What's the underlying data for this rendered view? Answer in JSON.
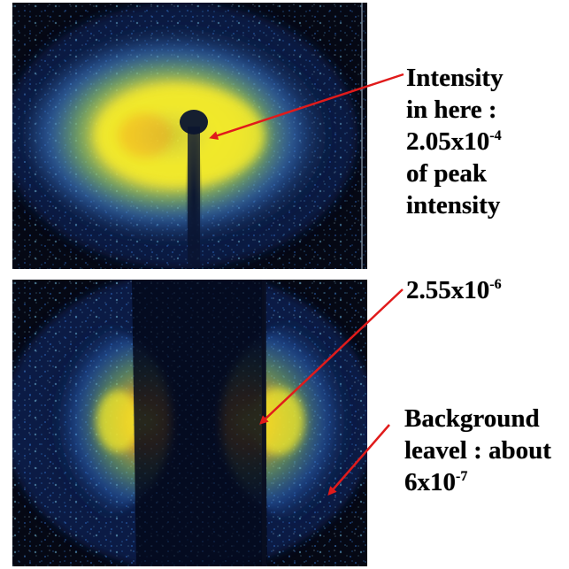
{
  "annotations": {
    "top": {
      "line1": "Intensity",
      "line2": "in here :",
      "line3_mantissa": "2.05x10",
      "line3_exp": "-4",
      "line4": "of peak",
      "line5": "intensity"
    },
    "middle": {
      "mantissa": "2.55x10",
      "exp": "-6"
    },
    "background": {
      "line1": "Background",
      "line2": "leavel : about",
      "line3_mantissa": "6x10",
      "line3_exp": "-7"
    }
  },
  "colors": {
    "arrow": "#e01b1b",
    "panel_bg": "#050814",
    "speckle_blue": "#2f6fd0",
    "speckle_cyan": "#79c8e8",
    "glow_yellow": "#f2ea2a",
    "glow_orange": "#f39a1e"
  },
  "icons": {
    "arrow_top": "red-arrow-icon",
    "arrow_mid": "red-arrow-icon",
    "arrow_bg": "red-arrow-icon"
  }
}
